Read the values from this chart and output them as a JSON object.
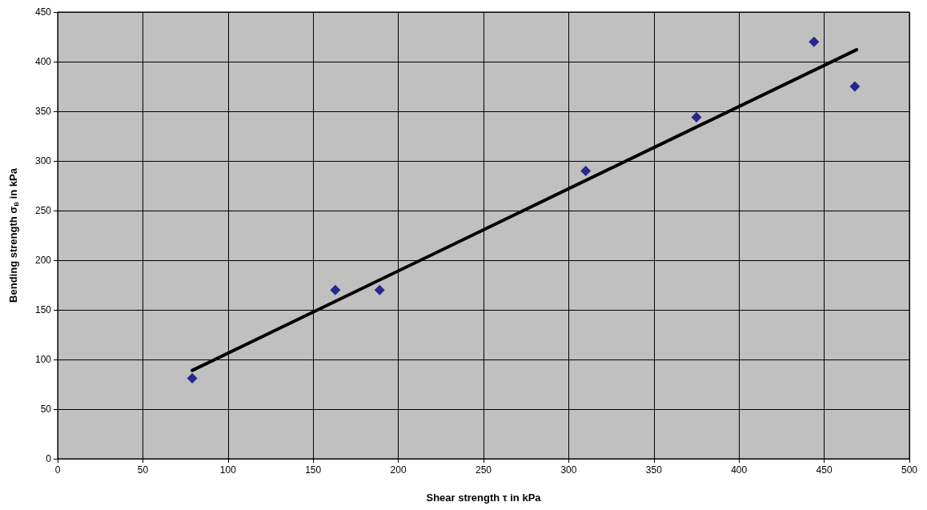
{
  "chart_data": {
    "type": "scatter",
    "xlabel": "Shear strength τ in kPa",
    "ylabel": "Bending strength σ$_{B}$ in kPa",
    "series": [
      {
        "color": "#000080",
        "x": [
          79,
          163,
          189,
          310,
          375,
          444,
          468
        ],
        "values": [
          81,
          170,
          170,
          290,
          344,
          420,
          375
        ],
        "marker": "diamond"
      },
      {
        "type": "line",
        "color": "#000000",
        "x": [
          79,
          469
        ],
        "values": [
          89,
          412
        ],
        "marker": "none",
        "line_style": "solid"
      }
    ],
    "xlim": [
      0,
      500
    ],
    "xticks": [
      0,
      50,
      100,
      150,
      200,
      250,
      300,
      350,
      400,
      450,
      500
    ],
    "ylim": [
      0,
      450
    ],
    "yticks": [
      0,
      50,
      100,
      150,
      200,
      250,
      300,
      350,
      400,
      450
    ],
    "grid": true
  }
}
